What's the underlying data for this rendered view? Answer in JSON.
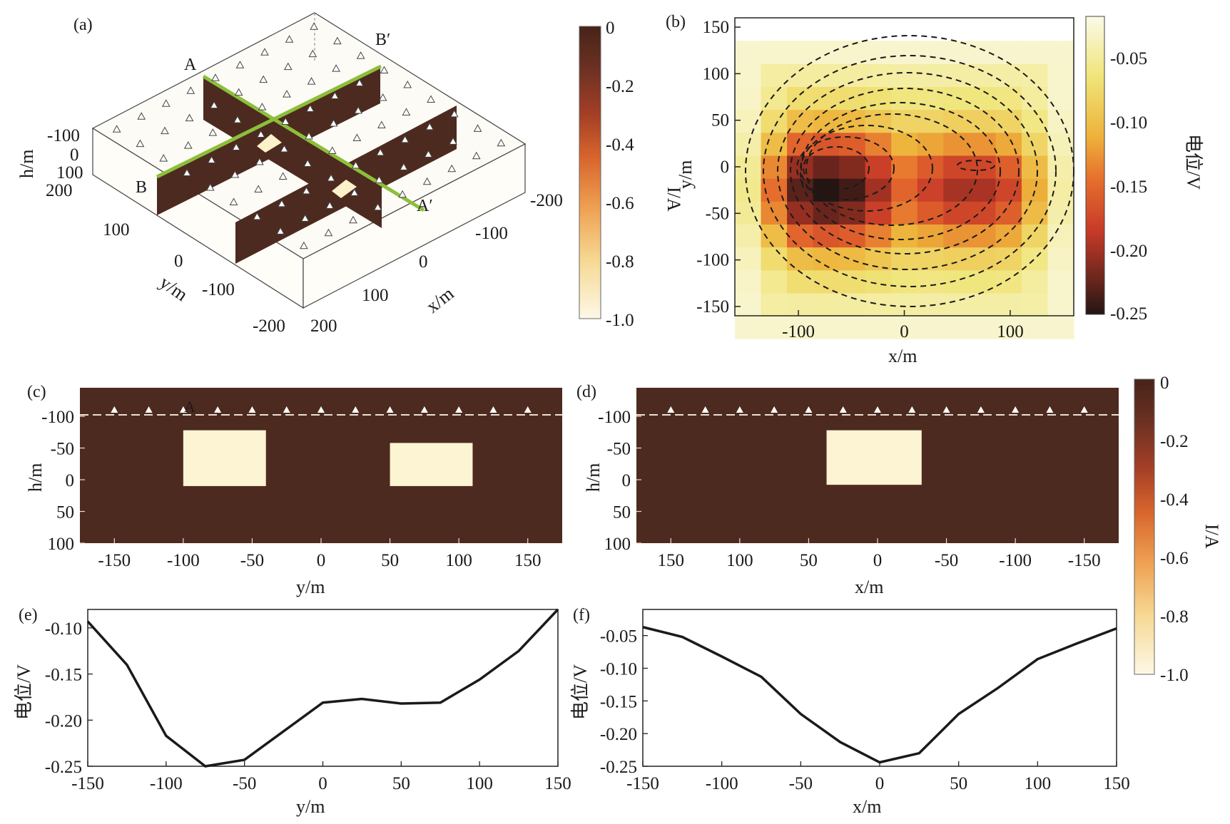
{
  "colors": {
    "bg": "#ffffff",
    "resistive_body": "#fcf4d2",
    "host_medium": "#4d2a1f",
    "profile_line": "#8cbf3a",
    "curve": "#1a1a1a"
  },
  "panels": {
    "a": {
      "label": "(a)",
      "profile_labels": [
        "A",
        "A′",
        "B",
        "B′"
      ],
      "h_ticks": [
        "-100",
        "0",
        "100",
        "200"
      ],
      "h_label": "h/m",
      "x_ticks": [
        "-200",
        "-100",
        "0",
        "100",
        "200"
      ],
      "x_label": "x/m",
      "y_ticks": [
        "100",
        "0",
        "-100",
        "-200"
      ],
      "y_label": "y/m",
      "colorbar": {
        "ticks": [
          "0",
          "-0.2",
          "-0.4",
          "-0.6",
          "-0.8",
          "-1.0"
        ],
        "label": "I/A"
      }
    },
    "b": {
      "label": "(b)",
      "x_label": "x/m",
      "y_label": "y/m",
      "colorbar": {
        "ticks": [
          "-0.05",
          "-0.10",
          "-0.15",
          "-0.20",
          "-0.25"
        ],
        "label": "电位/V"
      }
    },
    "c": {
      "label": "(c)",
      "marker_label": "A"
    },
    "d": {
      "label": "(d)"
    },
    "e": {
      "label": "(e)"
    },
    "f": {
      "label": "(f)"
    },
    "right_colorbar": {
      "ticks": [
        "0",
        "-0.2",
        "-0.4",
        "-0.6",
        "-0.8",
        "-1.0"
      ],
      "label": "I/A"
    }
  },
  "chart_data": [
    {
      "id": "a",
      "type": "other",
      "description_note": "",
      "xlabel": "x/m",
      "ylabel": "y/m",
      "zlabel": "h/m",
      "xlim": [
        -200,
        200
      ],
      "ylim": [
        -200,
        200
      ],
      "zlim": [
        -100,
        200
      ],
      "colorbar": {
        "range": [
          -1.0,
          0
        ],
        "ticks": [
          0,
          -0.2,
          -0.4,
          -0.6,
          -0.8,
          -1.0
        ],
        "label": "I/A"
      }
    },
    {
      "id": "b",
      "type": "heatmap",
      "xlabel": "x/m",
      "ylabel": "y/m",
      "xlim": [
        -160,
        160
      ],
      "ylim": [
        160,
        -160
      ],
      "x_ticks": [
        -100,
        0,
        100
      ],
      "y_ticks": [
        -150,
        -100,
        -50,
        0,
        50,
        100,
        150
      ],
      "colorbar": {
        "range": [
          -0.25,
          -0.02
        ],
        "ticks": [
          -0.05,
          -0.1,
          -0.15,
          -0.2,
          -0.25
        ],
        "label": "电位/V"
      }
    },
    {
      "id": "c",
      "type": "heatmap",
      "xlabel": "y/m",
      "ylabel": "h/m",
      "xlim": [
        -175,
        175
      ],
      "ylim": [
        -145,
        100
      ],
      "x_ticks": [
        -150,
        -100,
        -50,
        0,
        50,
        100,
        150
      ],
      "y_ticks": [
        -100,
        -50,
        0,
        50,
        100
      ],
      "electrodes_x": [
        -150,
        -125,
        -100,
        -75,
        -50,
        -25,
        0,
        25,
        50,
        75,
        100,
        125,
        150
      ],
      "ground_h": -100,
      "bodies": [
        {
          "x0": -100,
          "x1": -40,
          "h0": -78,
          "h1": 10
        },
        {
          "x0": 50,
          "x1": 110,
          "h0": -58,
          "h1": 10
        }
      ]
    },
    {
      "id": "d",
      "type": "heatmap",
      "xlabel": "x/m",
      "ylabel": "h/m",
      "xlim": [
        175,
        -175
      ],
      "ylim": [
        -145,
        100
      ],
      "x_ticks": [
        150,
        100,
        50,
        0,
        -50,
        -100,
        -150
      ],
      "y_ticks": [
        -100,
        -50,
        0,
        50,
        100
      ],
      "electrodes_x": [
        150,
        125,
        100,
        75,
        50,
        25,
        0,
        -25,
        -50,
        -75,
        -100,
        -125,
        -150
      ],
      "ground_h": -100,
      "bodies": [
        {
          "x0": 37,
          "x1": -32,
          "h0": -78,
          "h1": 8
        }
      ]
    },
    {
      "id": "e",
      "type": "line",
      "xlabel": "y/m",
      "ylabel": "电位/V",
      "xlim": [
        -150,
        150
      ],
      "ylim": [
        -0.25,
        -0.08
      ],
      "x_ticks": [
        -150,
        -100,
        -50,
        0,
        50,
        100,
        150
      ],
      "y_ticks": [
        -0.1,
        -0.15,
        -0.2,
        -0.25
      ],
      "x": [
        -150,
        -125,
        -100,
        -75,
        -50,
        -25,
        0,
        25,
        50,
        75,
        100,
        125,
        150
      ],
      "y": [
        -0.093,
        -0.14,
        -0.217,
        -0.25,
        -0.243,
        -0.212,
        -0.181,
        -0.177,
        -0.182,
        -0.181,
        -0.156,
        -0.125,
        -0.08
      ]
    },
    {
      "id": "f",
      "type": "line",
      "xlabel": "x/m",
      "ylabel": "电位/V",
      "xlim": [
        -150,
        150
      ],
      "ylim": [
        -0.25,
        -0.01
      ],
      "x_ticks": [
        -150,
        -100,
        -50,
        0,
        50,
        100,
        150
      ],
      "y_ticks": [
        -0.05,
        -0.1,
        -0.15,
        -0.2,
        -0.25
      ],
      "x": [
        -150,
        -125,
        -100,
        -75,
        -50,
        -25,
        0,
        25,
        50,
        75,
        100,
        125,
        150
      ],
      "y": [
        -0.037,
        -0.052,
        -0.082,
        -0.113,
        -0.17,
        -0.213,
        -0.244,
        -0.23,
        -0.17,
        -0.13,
        -0.086,
        -0.062,
        -0.039
      ]
    }
  ]
}
